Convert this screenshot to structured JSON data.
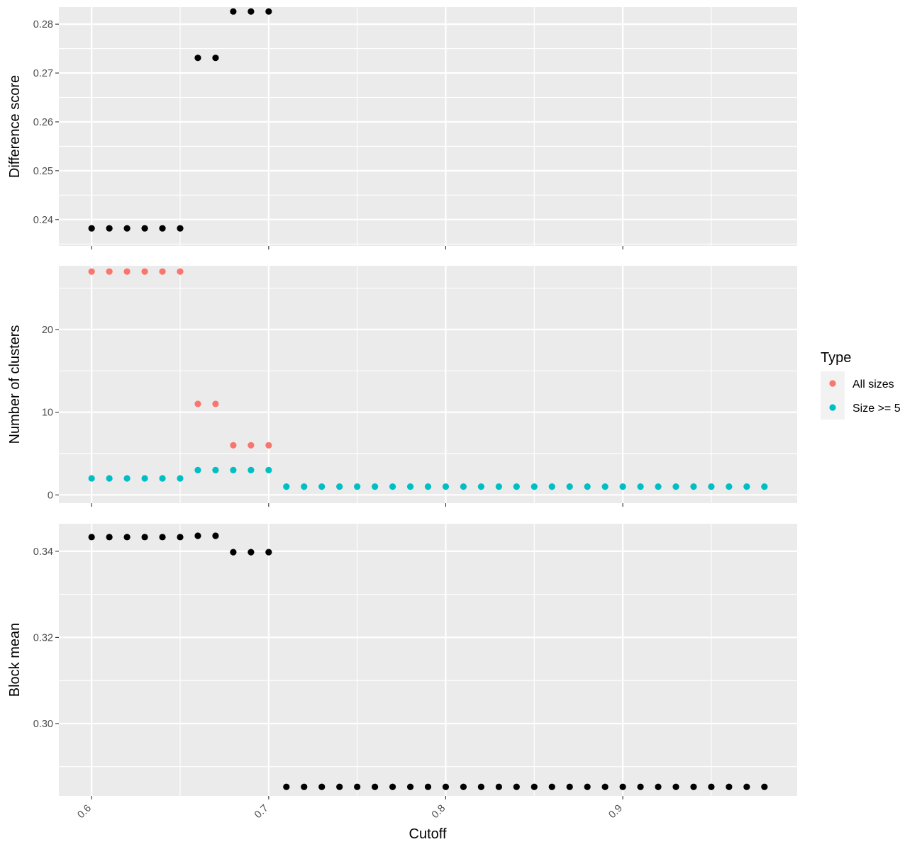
{
  "chart_data": {
    "type": "scatter",
    "xlabel": "Cutoff",
    "x_ticks": [
      0.6,
      0.7,
      0.8,
      0.9
    ],
    "x_tick_labels": [
      "0.6",
      "0.7",
      "0.8",
      "0.9"
    ],
    "xlim": [
      0.5815,
      0.9985
    ],
    "colors": {
      "all_sizes": "#F8766D",
      "size_ge_5": "#00BFC4",
      "black": "#000000",
      "panel_bg": "#EBEBEB",
      "grid": "#FFFFFF",
      "tick": "#333333",
      "text": "#4D4D4D"
    },
    "legend": {
      "title": "Type",
      "position": "right",
      "entries": [
        {
          "label": "All sizes",
          "color": "#F8766D"
        },
        {
          "label": "Size >= 5",
          "color": "#00BFC4"
        }
      ]
    },
    "panels": [
      {
        "ylabel": "Difference score",
        "ylim": [
          0.2346,
          0.2835
        ],
        "y_ticks": [
          0.24,
          0.25,
          0.26,
          0.27,
          0.28
        ],
        "y_tick_labels": [
          "0.24",
          "0.25",
          "0.26",
          "0.27",
          "0.28"
        ],
        "series": [
          {
            "color": "#000000",
            "x": [
              0.6,
              0.61,
              0.62,
              0.63,
              0.64,
              0.65,
              0.66,
              0.67,
              0.68,
              0.69,
              0.7
            ],
            "y": [
              0.2382,
              0.2382,
              0.2382,
              0.2382,
              0.2382,
              0.2382,
              0.2731,
              0.2731,
              0.2826,
              0.2826,
              0.2826
            ]
          }
        ]
      },
      {
        "ylabel": "Number of clusters",
        "ylim": [
          -1.0,
          27.7
        ],
        "y_ticks": [
          0,
          10,
          20
        ],
        "y_tick_labels": [
          "0",
          "10",
          "20"
        ],
        "series": [
          {
            "name": "All sizes",
            "color": "#F8766D",
            "x": [
              0.6,
              0.61,
              0.62,
              0.63,
              0.64,
              0.65,
              0.66,
              0.67,
              0.68,
              0.69,
              0.7
            ],
            "y": [
              27,
              27,
              27,
              27,
              27,
              27,
              11,
              11,
              6,
              6,
              6
            ]
          },
          {
            "name": "Size >= 5",
            "color": "#00BFC4",
            "x": [
              0.6,
              0.61,
              0.62,
              0.63,
              0.64,
              0.65,
              0.66,
              0.67,
              0.68,
              0.69,
              0.7,
              0.71,
              0.72,
              0.73,
              0.74,
              0.75,
              0.76,
              0.77,
              0.78,
              0.79,
              0.8,
              0.81,
              0.82,
              0.83,
              0.84,
              0.85,
              0.86,
              0.87,
              0.88,
              0.89,
              0.9,
              0.91,
              0.92,
              0.93,
              0.94,
              0.95,
              0.96,
              0.97,
              0.98
            ],
            "y": [
              2,
              2,
              2,
              2,
              2,
              2,
              3,
              3,
              3,
              3,
              3,
              1,
              1,
              1,
              1,
              1,
              1,
              1,
              1,
              1,
              1,
              1,
              1,
              1,
              1,
              1,
              1,
              1,
              1,
              1,
              1,
              1,
              1,
              1,
              1,
              1,
              1,
              1,
              1
            ]
          }
        ]
      },
      {
        "ylabel": "Block mean",
        "ylim": [
          0.2832,
          0.3464
        ],
        "y_ticks": [
          0.3,
          0.32,
          0.34
        ],
        "y_tick_labels": [
          "0.30",
          "0.32",
          "0.34"
        ],
        "series": [
          {
            "color": "#000000",
            "x": [
              0.6,
              0.61,
              0.62,
              0.63,
              0.64,
              0.65,
              0.66,
              0.67,
              0.68,
              0.69,
              0.7,
              0.71,
              0.72,
              0.73,
              0.74,
              0.75,
              0.76,
              0.77,
              0.78,
              0.79,
              0.8,
              0.81,
              0.82,
              0.83,
              0.84,
              0.85,
              0.86,
              0.87,
              0.88,
              0.89,
              0.9,
              0.91,
              0.92,
              0.93,
              0.94,
              0.95,
              0.96,
              0.97,
              0.98
            ],
            "y": [
              0.3433,
              0.3433,
              0.3433,
              0.3433,
              0.3433,
              0.3433,
              0.3436,
              0.3436,
              0.3398,
              0.3398,
              0.3398,
              0.2853,
              0.2853,
              0.2853,
              0.2853,
              0.2853,
              0.2853,
              0.2853,
              0.2853,
              0.2853,
              0.2853,
              0.2853,
              0.2853,
              0.2853,
              0.2853,
              0.2853,
              0.2853,
              0.2853,
              0.2853,
              0.2853,
              0.2853,
              0.2853,
              0.2853,
              0.2853,
              0.2853,
              0.2853,
              0.2853,
              0.2853,
              0.2853
            ]
          }
        ]
      }
    ]
  }
}
